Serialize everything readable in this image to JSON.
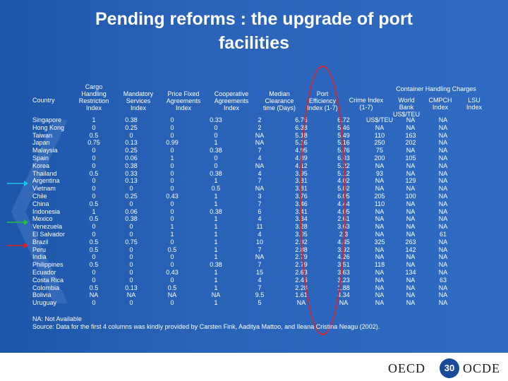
{
  "title_line1": "Pending reforms : the upgrade of port",
  "title_line2": "facilities",
  "container_group_label": "Container Handling Charges",
  "headers": {
    "country": [
      "Country"
    ],
    "cargo": [
      "Cargo",
      "Handling",
      "Restriction",
      "Index"
    ],
    "mandatory": [
      "Mandatory",
      "Services",
      "Index"
    ],
    "price": [
      "Price Fixed",
      "Agreements",
      "Index"
    ],
    "coop": [
      "Cooperative",
      "Agreements",
      "Index"
    ],
    "median": [
      "Median",
      "Clearance",
      "time (Days)"
    ],
    "port": [
      "Port",
      "Efficiency",
      "Index (1-7)"
    ],
    "crime": [
      "Crime Index",
      "(1-7)"
    ],
    "wb": [
      "World",
      "Bank",
      "US$/TEU"
    ],
    "cmpch": [
      "CMPCH",
      "Index"
    ],
    "lsu": [
      "LSU",
      "Index"
    ]
  },
  "rows": [
    [
      "Singapore",
      "1",
      "0.38",
      "0",
      "0.33",
      "2",
      "6.76",
      "6.72",
      "US$/TEU",
      "NA",
      "NA"
    ],
    [
      "Hong Kong",
      "0",
      "0.25",
      "0",
      "0",
      "2",
      "6.38",
      "5.46",
      "NA",
      "NA",
      "NA"
    ],
    [
      "Taiwan",
      "0.5",
      "0",
      "0",
      "0",
      "NA",
      "5.18",
      "5.49",
      "110",
      "163",
      "NA"
    ],
    [
      "Japan",
      "0.75",
      "0.13",
      "0.99",
      "1",
      "NA",
      "5.16",
      "5.16",
      "250",
      "202",
      "NA"
    ],
    [
      "Malaysia",
      "0",
      "0.25",
      "0",
      "0.38",
      "7",
      "4.95",
      "5.76",
      "75",
      "NA",
      "NA"
    ],
    [
      "Spain",
      "0",
      "0.06",
      "1",
      "0",
      "4",
      "4.89",
      "6.03",
      "200",
      "105",
      "NA"
    ],
    [
      "Korea",
      "0",
      "0.38",
      "0",
      "0",
      "NA",
      "4.12",
      "5.22",
      "NA",
      "NA",
      "NA"
    ],
    [
      "Thailand",
      "0.5",
      "0.33",
      "0",
      "0.38",
      "4",
      "3.95",
      "5.12",
      "93",
      "NA",
      "NA"
    ],
    [
      "Argentina",
      "0",
      "0.13",
      "0",
      "1",
      "7",
      "3.81",
      "4.02",
      "NA",
      "129",
      "NA"
    ],
    [
      "Vietnam",
      "0",
      "0",
      "0",
      "0.5",
      "NA",
      "3.81",
      "5.02",
      "NA",
      "NA",
      "NA"
    ],
    [
      "Chile",
      "0",
      "0.25",
      "0.43",
      "1",
      "3",
      "3.76",
      "6.05",
      "205",
      "100",
      "NA"
    ],
    [
      "China",
      "0.5",
      "0",
      "0",
      "1",
      "7",
      "3.46",
      "4.44",
      "110",
      "NA",
      "NA"
    ],
    [
      "Indonesia",
      "1",
      "0.06",
      "0",
      "0.38",
      "6",
      "3.41",
      "4.05",
      "NA",
      "NA",
      "NA"
    ],
    [
      "Mexico",
      "0.5",
      "0.38",
      "0",
      "1",
      "4",
      "3.34",
      "2.61",
      "NA",
      "NA",
      "NA"
    ],
    [
      "Venezuela",
      "0",
      "0",
      "1",
      "1",
      "11",
      "3.28",
      "3.63",
      "NA",
      "NA",
      "NA"
    ],
    [
      "El Salvador",
      "0",
      "0",
      "1",
      "1",
      "4",
      "3.05",
      "2.3",
      "NA",
      "NA",
      "61"
    ],
    [
      "Brazil",
      "0.5",
      "0.75",
      "0",
      "1",
      "10",
      "2.92",
      "4.45",
      "325",
      "263",
      "NA"
    ],
    [
      "Peru",
      "0.5",
      "0",
      "0.5",
      "1",
      "7",
      "2.88",
      "3.92",
      "NA",
      "142",
      "NA"
    ],
    [
      "India",
      "0",
      "0",
      "0",
      "1",
      "NA",
      "2.79",
      "4.26",
      "NA",
      "NA",
      "NA"
    ],
    [
      "Philippines",
      "0.5",
      "0",
      "0",
      "0.38",
      "7",
      "2.79",
      "3.51",
      "118",
      "NA",
      "NA"
    ],
    [
      "Ecuador",
      "0",
      "0",
      "0.43",
      "1",
      "15",
      "2.63",
      "3.63",
      "NA",
      "134",
      "NA"
    ],
    [
      "Costa Rica",
      "0",
      "0",
      "0",
      "1",
      "4",
      "2.46",
      "3.23",
      "NA",
      "NA",
      "63"
    ],
    [
      "Colombia",
      "0.5",
      "0.13",
      "0.5",
      "1",
      "7",
      "2.28",
      "1.88",
      "NA",
      "NA",
      "NA"
    ],
    [
      "Bolivia",
      "NA",
      "NA",
      "NA",
      "NA",
      "9.5",
      "1.61",
      "4.34",
      "NA",
      "NA",
      "NA"
    ],
    [
      "Uruguay",
      "0",
      "0",
      "0",
      "1",
      "5",
      "NA",
      "NA",
      "NA",
      "NA",
      "NA"
    ]
  ],
  "note1": "NA: Not Available",
  "note2": "Source: Data for the first 4 columns was kindly provided by Carsten Fink, Aaditya Mattoo, and Ileana Cristina Neagu (2002).",
  "footer": {
    "oecd_left": "OECD",
    "page": "30",
    "oecd_right": "OCDE"
  },
  "colors": {
    "background": "#2a63b8",
    "oval": "#e02020",
    "arrow_cyan": "#18c8e8",
    "arrow_green": "#20c040",
    "arrow_red": "#e02020"
  }
}
